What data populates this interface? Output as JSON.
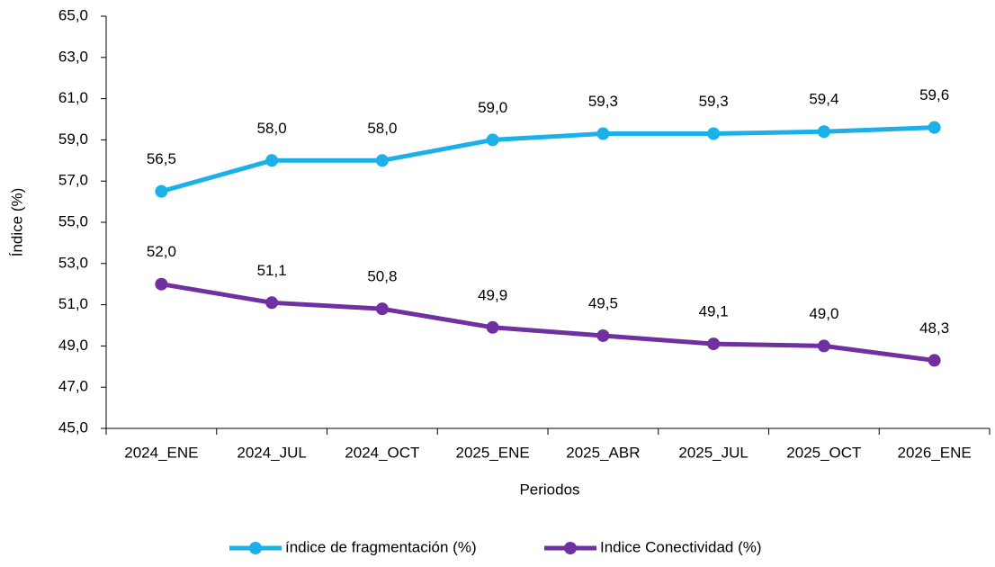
{
  "chart_data": {
    "type": "line",
    "categories": [
      "2024_ENE",
      "2024_JUL",
      "2024_OCT",
      "2025_ENE",
      "2025_ABR",
      "2025_JUL",
      "2025_OCT",
      "2026_ENE"
    ],
    "series": [
      {
        "name": "índice de fragmentación (%)",
        "color": "#1bb0e8",
        "values": [
          56.5,
          58.0,
          58.0,
          59.0,
          59.3,
          59.3,
          59.4,
          59.6
        ],
        "value_labels": [
          "56,5",
          "58,0",
          "58,0",
          "59,0",
          "59,3",
          "59,3",
          "59,4",
          "59,6"
        ]
      },
      {
        "name": "Indice Conectividad (%)",
        "color": "#7030a0",
        "values": [
          52.0,
          51.1,
          50.8,
          49.9,
          49.5,
          49.1,
          49.0,
          48.3
        ],
        "value_labels": [
          "52,0",
          "51,1",
          "50,8",
          "49,9",
          "49,5",
          "49,1",
          "49,0",
          "48,3"
        ]
      }
    ],
    "ylim": [
      45,
      65
    ],
    "yticks": [
      {
        "value": 45,
        "label": "45,0"
      },
      {
        "value": 47,
        "label": "47,0"
      },
      {
        "value": 49,
        "label": "49,0"
      },
      {
        "value": 51,
        "label": "51,0"
      },
      {
        "value": 53,
        "label": "53,0"
      },
      {
        "value": 55,
        "label": "55,0"
      },
      {
        "value": 57,
        "label": "57,0"
      },
      {
        "value": 59,
        "label": "59,0"
      },
      {
        "value": 61,
        "label": "61,0"
      },
      {
        "value": 63,
        "label": "63,0"
      },
      {
        "value": 65,
        "label": "65,0"
      }
    ],
    "xlabel": "Periodos",
    "ylabel": "Índice (%)",
    "grid": false,
    "legend": "bottom"
  }
}
